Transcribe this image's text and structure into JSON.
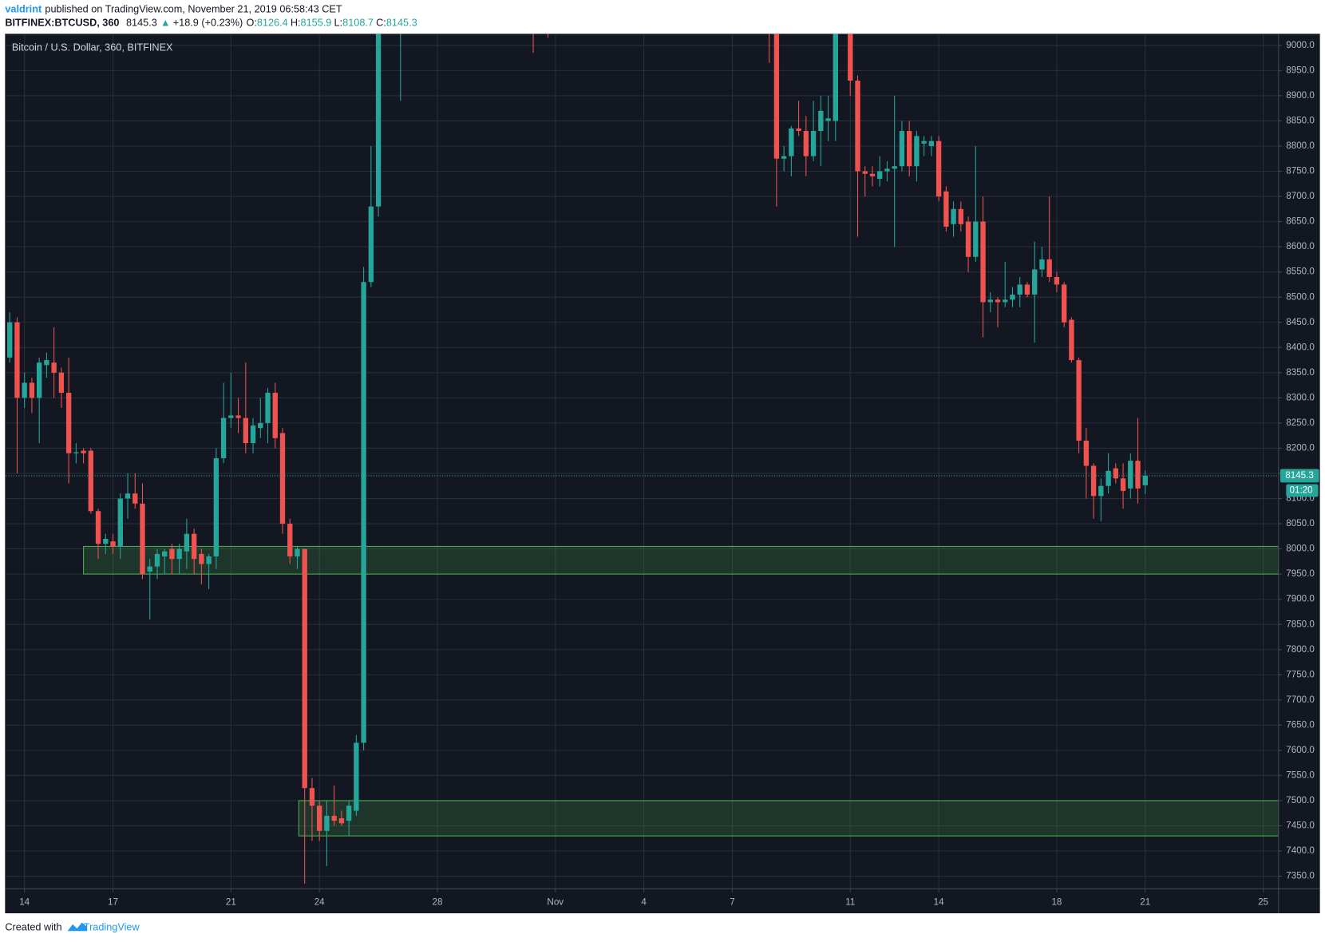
{
  "chart_data": {
    "type": "candlestick",
    "header": {
      "author": "valdrint",
      "published": "published on TradingView.com, November 21, 2019 06:58:43 CET",
      "symbol": "BITFINEX:BTCUSD, 360",
      "last": "8145.3",
      "arrow": "▲",
      "change": "+18.9 (+0.23%)",
      "o_label": "O:",
      "o": "8126.4",
      "h_label": "H:",
      "h": "8155.9",
      "l_label": "L:",
      "l": "8108.7",
      "c_label": "C:",
      "c": "8145.3"
    },
    "legend": "Bitcoin / U.S. Dollar, 360, BITFINEX",
    "footer": {
      "created": "Created with",
      "brand": "TradingView"
    },
    "up_color": "#26a69a",
    "down_color": "#ef5350",
    "grid": true,
    "xlim": [
      13.37,
      56.52
    ],
    "ylim": [
      7325,
      9023
    ],
    "xticks": [
      {
        "value": 14,
        "label": "14"
      },
      {
        "value": 17,
        "label": "17"
      },
      {
        "value": 21,
        "label": "21"
      },
      {
        "value": 24,
        "label": "24"
      },
      {
        "value": 28,
        "label": "28"
      },
      {
        "value": 32,
        "label": "Nov"
      },
      {
        "value": 35,
        "label": "4"
      },
      {
        "value": 38,
        "label": "7"
      },
      {
        "value": 42,
        "label": "11"
      },
      {
        "value": 45,
        "label": "14"
      },
      {
        "value": 49,
        "label": "18"
      },
      {
        "value": 52,
        "label": "21"
      },
      {
        "value": 56,
        "label": "25"
      }
    ],
    "yticks": [
      {
        "value": 7350,
        "label": "7350.0"
      },
      {
        "value": 7400,
        "label": "7400.0"
      },
      {
        "value": 7450,
        "label": "7450.0"
      },
      {
        "value": 7500,
        "label": "7500.0"
      },
      {
        "value": 7550,
        "label": "7550.0"
      },
      {
        "value": 7600,
        "label": "7600.0"
      },
      {
        "value": 7650,
        "label": "7650.0"
      },
      {
        "value": 7700,
        "label": "7700.0"
      },
      {
        "value": 7750,
        "label": "7750.0"
      },
      {
        "value": 7800,
        "label": "7800.0"
      },
      {
        "value": 7850,
        "label": "7850.0"
      },
      {
        "value": 7900,
        "label": "7900.0"
      },
      {
        "value": 7950,
        "label": "7950.0"
      },
      {
        "value": 8000,
        "label": "8000.0"
      },
      {
        "value": 8050,
        "label": "8050.0"
      },
      {
        "value": 8100,
        "label": "8100.0"
      },
      {
        "value": 8150,
        "label": "8150.0"
      },
      {
        "value": 8200,
        "label": "8200.0"
      },
      {
        "value": 8250,
        "label": "8250.0"
      },
      {
        "value": 8300,
        "label": "8300.0"
      },
      {
        "value": 8350,
        "label": "8350.0"
      },
      {
        "value": 8400,
        "label": "8400.0"
      },
      {
        "value": 8450,
        "label": "8450.0"
      },
      {
        "value": 8500,
        "label": "8500.0"
      },
      {
        "value": 8550,
        "label": "8550.0"
      },
      {
        "value": 8600,
        "label": "8600.0"
      },
      {
        "value": 8650,
        "label": "8650.0"
      },
      {
        "value": 8700,
        "label": "8700.0"
      },
      {
        "value": 8750,
        "label": "8750.0"
      },
      {
        "value": 8800,
        "label": "8800.0"
      },
      {
        "value": 8850,
        "label": "8850.0"
      },
      {
        "value": 8900,
        "label": "8900.0"
      },
      {
        "value": 8950,
        "label": "8950.0"
      },
      {
        "value": 9000,
        "label": "9000.0"
      }
    ],
    "price_line": {
      "value": 8145.3,
      "label": "8145.3",
      "countdown": "01:20",
      "color": "#26a69a"
    },
    "zones": [
      {
        "x0": 16,
        "low": 7950,
        "high": 8005,
        "color": "#4caf50"
      },
      {
        "x0": 23.3,
        "low": 7430,
        "high": 7500,
        "color": "#4caf50"
      }
    ],
    "candles": {
      "x": [
        13.5,
        13.75,
        14,
        14.25,
        14.5,
        14.75,
        15,
        15.25,
        15.5,
        15.75,
        16,
        16.25,
        16.5,
        16.75,
        17,
        17.25,
        17.5,
        17.75,
        18,
        18.25,
        18.5,
        18.75,
        19,
        19.25,
        19.5,
        19.75,
        20,
        20.25,
        20.5,
        20.75,
        21,
        21.25,
        21.5,
        21.75,
        22,
        22.25,
        22.5,
        22.75,
        23,
        23.25,
        23.5,
        23.75,
        24,
        24.25,
        24.5,
        24.75,
        25,
        25.25,
        25.5,
        25.75,
        26,
        26.75,
        31.25,
        31.75,
        39.25,
        39.5,
        39.75,
        40,
        40.25,
        40.5,
        40.75,
        41,
        41.25,
        41.5,
        42,
        42.25,
        42.5,
        42.75,
        43,
        43.25,
        43.5,
        43.75,
        44,
        44.25,
        44.5,
        44.75,
        45,
        45.25,
        45.5,
        45.75,
        46,
        46.25,
        46.5,
        46.75,
        47,
        47.25,
        47.5,
        47.75,
        48,
        48.25,
        48.5,
        48.75,
        49,
        49.25,
        49.5,
        49.75,
        50,
        50.25,
        50.5,
        50.75,
        51,
        51.25,
        51.5,
        51.75,
        52
      ],
      "open": [
        8380,
        8450,
        8300,
        8330,
        8300,
        8365,
        8370,
        8350,
        8310,
        8190,
        8195,
        8195,
        8075,
        8010,
        8015,
        8005,
        8100,
        8110,
        8090,
        7955,
        7965,
        7985,
        8000,
        7980,
        7995,
        8030,
        7990,
        7970,
        7985,
        8180,
        8260,
        8265,
        8260,
        8210,
        8240,
        8250,
        8310,
        8230,
        8050,
        7985,
        8000,
        7525,
        7490,
        7440,
        7470,
        7465,
        7460,
        7480,
        7615,
        8530,
        8680,
        9150,
        9150,
        9150,
        9200,
        9100,
        8775,
        8780,
        8835,
        8830,
        8780,
        8830,
        8850,
        8850,
        9100,
        8930,
        8750,
        8745,
        8735,
        8750,
        8755,
        8760,
        8830,
        8760,
        8805,
        8800,
        8810,
        8710,
        8645,
        8675,
        8650,
        8580,
        8650,
        8490,
        8495,
        8490,
        8495,
        8505,
        8525,
        8505,
        8555,
        8575,
        8540,
        8525,
        8455,
        8375,
        8215,
        8165,
        8105,
        8125,
        8160,
        8140,
        8120,
        8175,
        8126.4
      ],
      "high": [
        8470,
        8460,
        8350,
        8340,
        8380,
        8390,
        8440,
        8360,
        8380,
        8210,
        8200,
        8200,
        8080,
        8030,
        8030,
        8110,
        8150,
        8150,
        8130,
        7980,
        8000,
        8000,
        8010,
        8010,
        8060,
        8040,
        8000,
        7990,
        8200,
        8330,
        8350,
        8300,
        8370,
        8260,
        8300,
        8320,
        8330,
        8240,
        8060,
        8005,
        8000,
        7545,
        7500,
        7500,
        7530,
        7480,
        7500,
        7630,
        8560,
        8800,
        9400,
        9300,
        9200,
        9200,
        9250,
        9150,
        8800,
        8840,
        8890,
        8860,
        8890,
        8900,
        8900,
        9150,
        9150,
        8940,
        8760,
        8760,
        8780,
        8770,
        8900,
        8850,
        8850,
        8830,
        8820,
        8820,
        8820,
        8720,
        8690,
        8690,
        8660,
        8800,
        8700,
        8510,
        8500,
        8570,
        8520,
        8540,
        8530,
        8610,
        8600,
        8700,
        8550,
        8530,
        8460,
        8380,
        8240,
        8170,
        8140,
        8190,
        8170,
        8170,
        8190,
        8260,
        8155.9
      ],
      "low": [
        8370,
        8150,
        8280,
        8270,
        8210,
        8340,
        8300,
        8280,
        8130,
        8170,
        8170,
        8070,
        7980,
        7990,
        7990,
        7980,
        8060,
        8080,
        7940,
        7860,
        7940,
        7950,
        7950,
        7950,
        7960,
        7950,
        7930,
        7920,
        7960,
        8170,
        8240,
        8230,
        8190,
        8190,
        8220,
        8210,
        8200,
        8030,
        7970,
        7960,
        7335,
        7420,
        7420,
        7370,
        7450,
        7450,
        7430,
        7470,
        7600,
        8520,
        8660,
        8890,
        8985,
        9015,
        8965,
        8680,
        8750,
        8740,
        8820,
        8740,
        8770,
        8760,
        8810,
        8810,
        8900,
        8620,
        8700,
        8720,
        8720,
        8730,
        8600,
        8750,
        8740,
        8730,
        8780,
        8780,
        8690,
        8630,
        8620,
        8630,
        8550,
        8570,
        8420,
        8470,
        8440,
        8480,
        8480,
        8480,
        8500,
        8410,
        8540,
        8530,
        8510,
        8440,
        8370,
        8190,
        8100,
        8060,
        8055,
        8110,
        8130,
        8080,
        8100,
        8090,
        8108.7
      ],
      "close": [
        8450,
        8300,
        8330,
        8300,
        8370,
        8375,
        8350,
        8310,
        8190,
        8192,
        8190,
        8075,
        8010,
        8020,
        8005,
        8100,
        8110,
        8090,
        7950,
        7965,
        7990,
        7995,
        7980,
        8000,
        8030,
        7980,
        7970,
        7985,
        8180,
        8260,
        8265,
        8260,
        8210,
        8245,
        8250,
        8310,
        8220,
        8050,
        7985,
        8000,
        7525,
        7490,
        7440,
        7470,
        7460,
        7455,
        7490,
        7615,
        8530,
        8680,
        9350,
        9250,
        9100,
        9100,
        9100,
        8775,
        8780,
        8835,
        8830,
        8780,
        8830,
        8870,
        8855,
        9100,
        8930,
        8750,
        8745,
        8740,
        8750,
        8755,
        8760,
        8830,
        8760,
        8820,
        8810,
        8810,
        8700,
        8640,
        8675,
        8645,
        8580,
        8650,
        8490,
        8495,
        8490,
        8495,
        8505,
        8525,
        8505,
        8555,
        8575,
        8540,
        8525,
        8450,
        8375,
        8215,
        8165,
        8105,
        8125,
        8155,
        8140,
        8115,
        8175,
        8120,
        8145.3
      ]
    }
  }
}
